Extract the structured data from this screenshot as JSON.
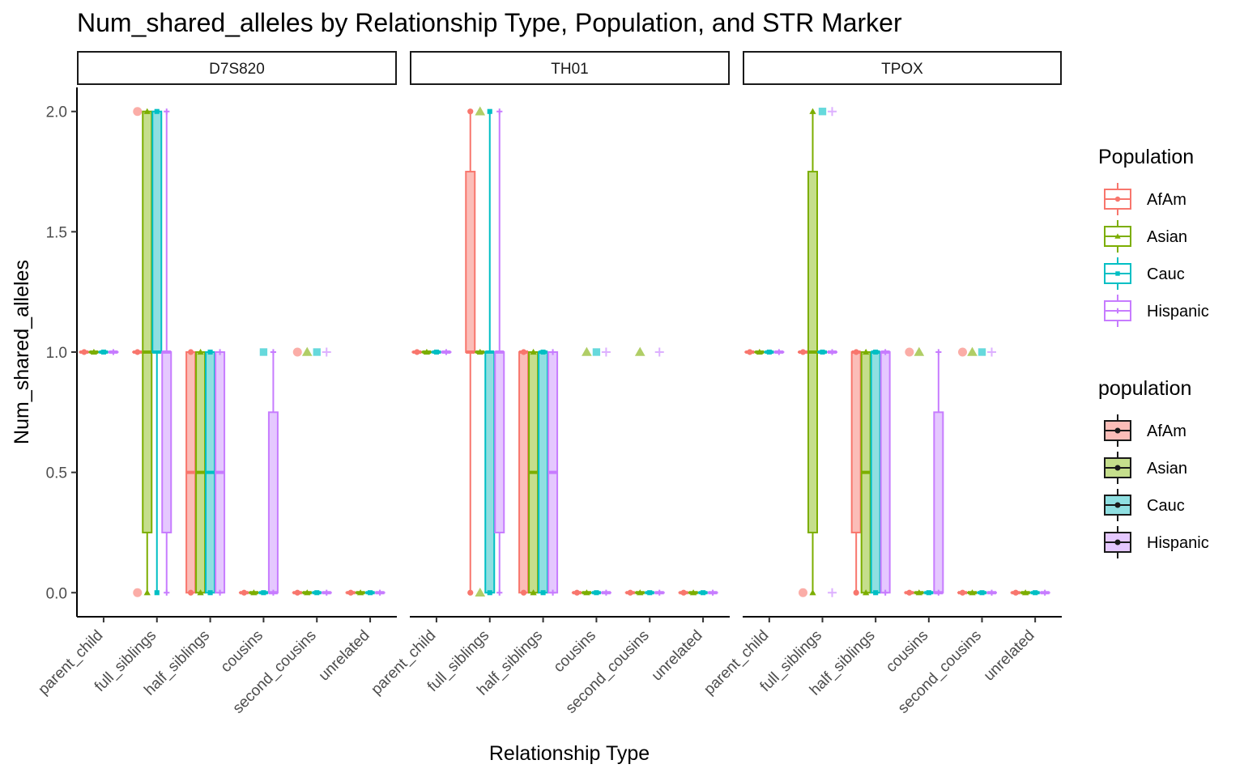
{
  "chart_data": {
    "type": "boxplot",
    "title": "Num_shared_alleles by Relationship Type, Population, and STR Marker",
    "xlabel": "Relationship Type",
    "ylabel": "Num_shared_alleles",
    "ylim": [
      -0.1,
      2.1
    ],
    "yticks": [
      "0.0",
      "0.5",
      "1.0",
      "1.5",
      "2.0"
    ],
    "categories": [
      "parent_child",
      "full_siblings",
      "half_siblings",
      "cousins",
      "second_cousins",
      "unrelated"
    ],
    "populations": [
      "AfAm",
      "Asian",
      "Cauc",
      "Hispanic"
    ],
    "colors": {
      "AfAm": "#F8766D",
      "Asian": "#7CAE00",
      "Cauc": "#00BFC4",
      "Hispanic": "#C77CFF"
    },
    "fills": {
      "AfAm": "#FBBDB8",
      "Asian": "#C5DE8C",
      "Cauc": "#8FDFE1",
      "Hispanic": "#E5C8FF"
    },
    "grid": false,
    "legend_position": "right",
    "legends": [
      {
        "title": "Population",
        "style": "colored",
        "entries": [
          "AfAm",
          "Asian",
          "Cauc",
          "Hispanic"
        ]
      },
      {
        "title": "population",
        "style": "filled",
        "entries": [
          "AfAm",
          "Asian",
          "Cauc",
          "Hispanic"
        ]
      }
    ],
    "panels": [
      {
        "name": "D7S820",
        "boxes": {
          "parent_child": {
            "AfAm": [
              1,
              1,
              1,
              1,
              1
            ],
            "Asian": [
              1,
              1,
              1,
              1,
              1
            ],
            "Cauc": [
              1,
              1,
              1,
              1,
              1
            ],
            "Hispanic": [
              1,
              1,
              1,
              1,
              1
            ]
          },
          "full_siblings": {
            "AfAm": [
              1,
              1,
              1,
              1,
              1
            ],
            "Asian": [
              0,
              0.25,
              1,
              2,
              2
            ],
            "Cauc": [
              0,
              1,
              1,
              2,
              2
            ],
            "Hispanic": [
              0,
              0.25,
              1,
              1,
              2
            ]
          },
          "half_siblings": {
            "AfAm": [
              0,
              0,
              0.5,
              1,
              1
            ],
            "Asian": [
              0,
              0,
              0.5,
              1,
              1
            ],
            "Cauc": [
              0,
              0,
              0.5,
              1,
              1
            ],
            "Hispanic": [
              0,
              0,
              0.5,
              1,
              1
            ]
          },
          "cousins": {
            "AfAm": [
              0,
              0,
              0,
              0,
              0
            ],
            "Asian": [
              0,
              0,
              0,
              0,
              0
            ],
            "Cauc": [
              0,
              0,
              0,
              0,
              0
            ],
            "Hispanic": [
              0,
              0,
              0,
              0.75,
              1
            ]
          },
          "second_cousins": {
            "AfAm": [
              0,
              0,
              0,
              0,
              0
            ],
            "Asian": [
              0,
              0,
              0,
              0,
              0
            ],
            "Cauc": [
              0,
              0,
              0,
              0,
              0
            ],
            "Hispanic": [
              0,
              0,
              0,
              0,
              0
            ]
          },
          "unrelated": {
            "AfAm": [
              0,
              0,
              0,
              0,
              0
            ],
            "Asian": [
              0,
              0,
              0,
              0,
              0
            ],
            "Cauc": [
              0,
              0,
              0,
              0,
              0
            ],
            "Hispanic": [
              0,
              0,
              0,
              0,
              0
            ]
          }
        },
        "outliers": {
          "full_siblings": {
            "AfAm": [
              0,
              2
            ]
          },
          "cousins": {
            "Cauc": [
              1
            ]
          },
          "second_cousins": {
            "AfAm": [
              1
            ],
            "Asian": [
              1
            ],
            "Cauc": [
              1
            ],
            "Hispanic": [
              1
            ]
          }
        }
      },
      {
        "name": "TH01",
        "boxes": {
          "parent_child": {
            "AfAm": [
              1,
              1,
              1,
              1,
              1
            ],
            "Asian": [
              1,
              1,
              1,
              1,
              1
            ],
            "Cauc": [
              1,
              1,
              1,
              1,
              1
            ],
            "Hispanic": [
              1,
              1,
              1,
              1,
              1
            ]
          },
          "full_siblings": {
            "AfAm": [
              0,
              1,
              1,
              1.75,
              2
            ],
            "Asian": [
              1,
              1,
              1,
              1,
              1
            ],
            "Cauc": [
              0,
              0,
              1,
              1,
              2
            ],
            "Hispanic": [
              0,
              0.25,
              1,
              1,
              2
            ]
          },
          "half_siblings": {
            "AfAm": [
              0,
              0,
              1,
              1,
              1
            ],
            "Asian": [
              0,
              0,
              0.5,
              1,
              1
            ],
            "Cauc": [
              0,
              0,
              1,
              1,
              1
            ],
            "Hispanic": [
              0,
              0,
              0.5,
              1,
              1
            ]
          },
          "cousins": {
            "AfAm": [
              0,
              0,
              0,
              0,
              0
            ],
            "Asian": [
              0,
              0,
              0,
              0,
              0
            ],
            "Cauc": [
              0,
              0,
              0,
              0,
              0
            ],
            "Hispanic": [
              0,
              0,
              0,
              0,
              0
            ]
          },
          "second_cousins": {
            "AfAm": [
              0,
              0,
              0,
              0,
              0
            ],
            "Asian": [
              0,
              0,
              0,
              0,
              0
            ],
            "Cauc": [
              0,
              0,
              0,
              0,
              0
            ],
            "Hispanic": [
              0,
              0,
              0,
              0,
              0
            ]
          },
          "unrelated": {
            "AfAm": [
              0,
              0,
              0,
              0,
              0
            ],
            "Asian": [
              0,
              0,
              0,
              0,
              0
            ],
            "Cauc": [
              0,
              0,
              0,
              0,
              0
            ],
            "Hispanic": [
              0,
              0,
              0,
              0,
              0
            ]
          }
        },
        "outliers": {
          "full_siblings": {
            "Asian": [
              0,
              2
            ]
          },
          "cousins": {
            "Asian": [
              1
            ],
            "Cauc": [
              1
            ],
            "Hispanic": [
              1
            ]
          },
          "second_cousins": {
            "Asian": [
              1
            ],
            "Hispanic": [
              1
            ]
          }
        }
      },
      {
        "name": "TPOX",
        "boxes": {
          "parent_child": {
            "AfAm": [
              1,
              1,
              1,
              1,
              1
            ],
            "Asian": [
              1,
              1,
              1,
              1,
              1
            ],
            "Cauc": [
              1,
              1,
              1,
              1,
              1
            ],
            "Hispanic": [
              1,
              1,
              1,
              1,
              1
            ]
          },
          "full_siblings": {
            "AfAm": [
              1,
              1,
              1,
              1,
              1
            ],
            "Asian": [
              0,
              0.25,
              1,
              1.75,
              2
            ],
            "Cauc": [
              1,
              1,
              1,
              1,
              1
            ],
            "Hispanic": [
              1,
              1,
              1,
              1,
              1
            ]
          },
          "half_siblings": {
            "AfAm": [
              0,
              0.25,
              1,
              1,
              1
            ],
            "Asian": [
              0,
              0,
              0.5,
              1,
              1
            ],
            "Cauc": [
              0,
              0,
              1,
              1,
              1
            ],
            "Hispanic": [
              0,
              0,
              1,
              1,
              1
            ]
          },
          "cousins": {
            "AfAm": [
              0,
              0,
              0,
              0,
              0
            ],
            "Asian": [
              0,
              0,
              0,
              0,
              0
            ],
            "Cauc": [
              0,
              0,
              0,
              0,
              0
            ],
            "Hispanic": [
              0,
              0,
              0,
              0.75,
              1
            ]
          },
          "second_cousins": {
            "AfAm": [
              0,
              0,
              0,
              0,
              0
            ],
            "Asian": [
              0,
              0,
              0,
              0,
              0
            ],
            "Cauc": [
              0,
              0,
              0,
              0,
              0
            ],
            "Hispanic": [
              0,
              0,
              0,
              0,
              0
            ]
          },
          "unrelated": {
            "AfAm": [
              0,
              0,
              0,
              0,
              0
            ],
            "Asian": [
              0,
              0,
              0,
              0,
              0
            ],
            "Cauc": [
              0,
              0,
              0,
              0,
              0
            ],
            "Hispanic": [
              0,
              0,
              0,
              0,
              0
            ]
          }
        },
        "outliers": {
          "full_siblings": {
            "AfAm": [
              0
            ],
            "Cauc": [
              2
            ],
            "Hispanic": [
              0,
              2
            ]
          },
          "cousins": {
            "AfAm": [
              1
            ],
            "Asian": [
              1
            ]
          },
          "second_cousins": {
            "AfAm": [
              1
            ],
            "Asian": [
              1
            ],
            "Cauc": [
              1
            ],
            "Hispanic": [
              1
            ]
          }
        }
      }
    ]
  }
}
